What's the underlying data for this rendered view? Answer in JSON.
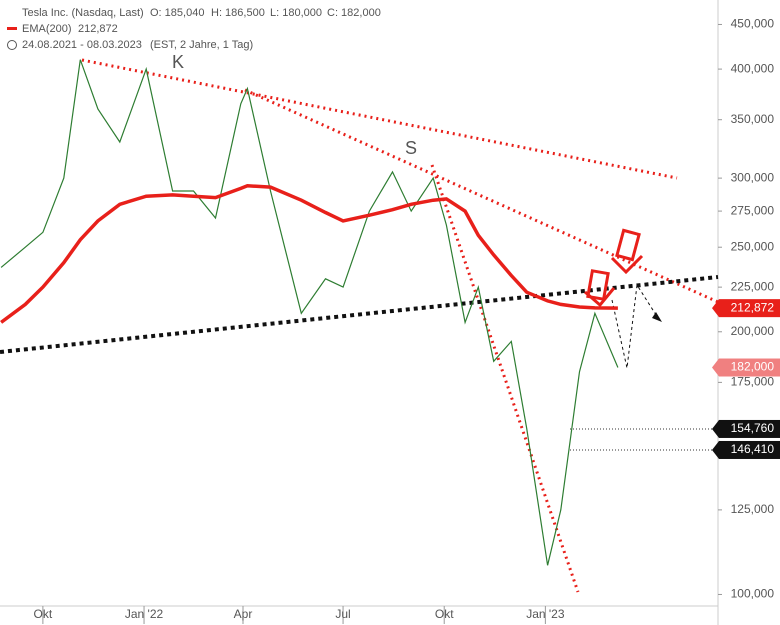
{
  "chart_data": {
    "type": "line",
    "header": [
      "Tesla Inc. (Nasdaq, Last)",
      "O: 185,040",
      "H: 186,500",
      "L: 180,000",
      "C: 182,000"
    ],
    "period": [
      "24.08.2021 - 08.03.2023",
      "(EST, 2 Jahre, 1 Tag)"
    ],
    "ema_label": [
      "EMA(200)",
      "212,872"
    ],
    "annotations": [
      "K",
      "S"
    ],
    "log_scale": true,
    "xlim": [
      "2021-08-23",
      "2023-06-07"
    ],
    "xticks": [
      {
        "value": "2021-10-01",
        "label": "Okt"
      },
      {
        "value": "2022-01-01",
        "label": "Jan '22"
      },
      {
        "value": "2022-04-01",
        "label": "Apr"
      },
      {
        "value": "2022-07-01",
        "label": "Jul"
      },
      {
        "value": "2022-10-01",
        "label": "Okt"
      },
      {
        "value": "2023-01-01",
        "label": "Jan '23"
      }
    ],
    "ylim": [
      97000,
      480000
    ],
    "yticks": [
      {
        "value": 100000,
        "label": "100,000"
      },
      {
        "value": 125000,
        "label": "125,000"
      },
      {
        "value": 175000,
        "label": "175,000"
      },
      {
        "value": 200000,
        "label": "200,000"
      },
      {
        "value": 225000,
        "label": "225,000"
      },
      {
        "value": 250000,
        "label": "250,000"
      },
      {
        "value": 275000,
        "label": "275,000"
      },
      {
        "value": 300000,
        "label": "300,000"
      },
      {
        "value": 350000,
        "label": "350,000"
      },
      {
        "value": 400000,
        "label": "400,000"
      },
      {
        "value": 450000,
        "label": "450,000"
      }
    ],
    "x": [
      "2021-08-24",
      "2021-09-15",
      "2021-10-01",
      "2021-10-20",
      "2021-11-04",
      "2021-11-20",
      "2021-12-10",
      "2022-01-03",
      "2022-01-27",
      "2022-02-15",
      "2022-03-07",
      "2022-03-30",
      "2022-04-05",
      "2022-04-26",
      "2022-05-24",
      "2022-06-15",
      "2022-07-01",
      "2022-07-25",
      "2022-08-15",
      "2022-09-01",
      "2022-09-21",
      "2022-10-03",
      "2022-10-20",
      "2022-11-01",
      "2022-11-15",
      "2022-12-01",
      "2022-12-15",
      "2023-01-03",
      "2023-01-15",
      "2023-02-01",
      "2023-02-15",
      "2023-03-08"
    ],
    "series": [
      {
        "name": "Tesla Inc. (Nasdaq, Last)",
        "color": "#2e7d32",
        "values": [
          237000,
          250000,
          260000,
          300000,
          410000,
          360000,
          330000,
          400000,
          290000,
          290000,
          270000,
          365000,
          380000,
          290000,
          210000,
          230000,
          225000,
          275000,
          305000,
          275000,
          300000,
          265000,
          205000,
          225000,
          185000,
          195000,
          155000,
          108000,
          125000,
          180000,
          210000,
          182000
        ]
      },
      {
        "name": "EMA(200)",
        "color": "#e8201a",
        "values": [
          205000,
          215000,
          225000,
          240000,
          255000,
          268000,
          280000,
          286000,
          287000,
          286000,
          285000,
          292000,
          294000,
          293000,
          283000,
          274000,
          268000,
          272000,
          276000,
          280000,
          283000,
          284000,
          275000,
          258000,
          245000,
          232000,
          222000,
          217000,
          215000,
          213500,
          213000,
          212872
        ]
      }
    ],
    "levels": [
      {
        "value": 212872,
        "label": "212,872",
        "color": "#e8201a"
      },
      {
        "value": 182000,
        "label": "182,000",
        "color": "#f08080"
      },
      {
        "value": 154760,
        "label": "154,760",
        "color": "#111111"
      },
      {
        "value": 146410,
        "label": "146,410",
        "color": "#111111"
      }
    ]
  }
}
